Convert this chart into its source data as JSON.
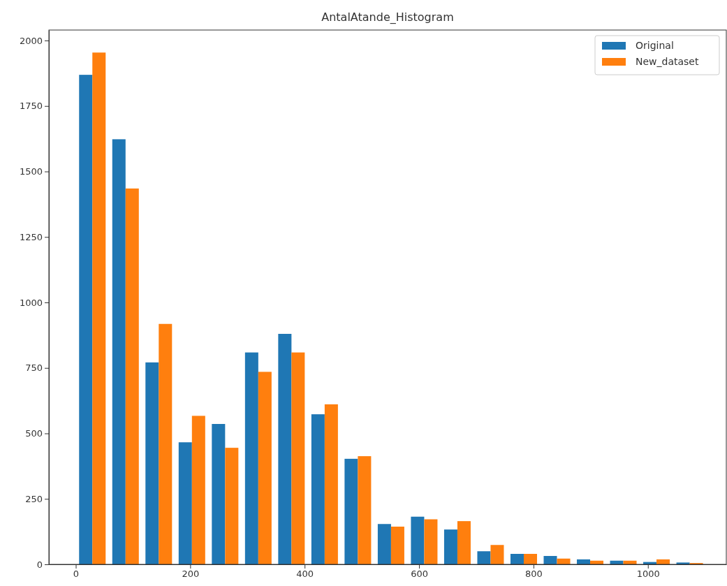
{
  "chart_data": {
    "type": "histogram",
    "title": "AntalAtande_Histogram",
    "bins": [
      0,
      58,
      116,
      174,
      232,
      290,
      348,
      406,
      464,
      522,
      580,
      638,
      696,
      754,
      812,
      870,
      928,
      986,
      1044,
      1102
    ],
    "series": [
      {
        "name": "Original",
        "color": "#1f77b4",
        "values": [
          1869,
          1623,
          771,
          466,
          536,
          809,
          880,
          573,
          403,
          154,
          182,
          133,
          50,
          40,
          32,
          19,
          14,
          9,
          7
        ]
      },
      {
        "name": "New_dataset",
        "color": "#ff7f0e",
        "values": [
          1954,
          1435,
          918,
          567,
          445,
          735,
          809,
          611,
          413,
          144,
          172,
          165,
          74,
          40,
          22,
          14,
          14,
          19,
          5
        ]
      }
    ],
    "xlim": [
      -47,
      1137
    ],
    "xticks": [
      0,
      200,
      400,
      600,
      800,
      1000
    ],
    "ylim": [
      0,
      2040
    ],
    "yticks": [
      0,
      250,
      500,
      750,
      1000,
      1250,
      1500,
      1750,
      2000
    ],
    "grid": false,
    "legend": "top right"
  }
}
